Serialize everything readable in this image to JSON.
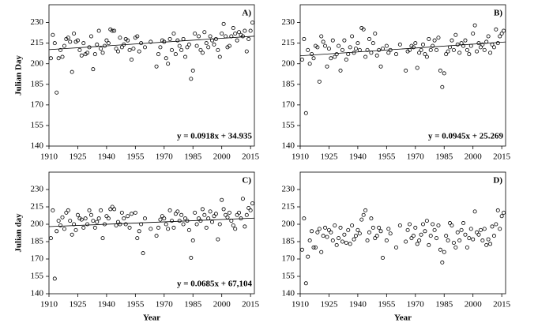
{
  "chart_data": [
    {
      "type": "scatter",
      "panel_label": "A)",
      "ylabel": "Julian Day",
      "color": "#000000",
      "xlim": [
        1910,
        2017
      ],
      "xticks": [
        1910,
        1925,
        1940,
        1955,
        1970,
        1985,
        2000,
        2015
      ],
      "ylim": [
        140,
        243
      ],
      "yticks": [
        140,
        155,
        170,
        185,
        200,
        215,
        230
      ],
      "trend": {
        "slope": 0.0918,
        "intercept": 34.935,
        "label": "y = 0.0918x + 34.935"
      },
      "x": [
        1911,
        1912,
        1913,
        1914,
        1915,
        1916,
        1917,
        1918,
        1919,
        1920,
        1921,
        1922,
        1923,
        1924,
        1925,
        1926,
        1927,
        1928,
        1929,
        1930,
        1931,
        1932,
        1933,
        1934,
        1935,
        1936,
        1937,
        1938,
        1939,
        1940,
        1941,
        1942,
        1943,
        1944,
        1945,
        1946,
        1947,
        1948,
        1949,
        1950,
        1951,
        1952,
        1953,
        1954,
        1955,
        1956,
        1957,
        1958,
        1960,
        1963,
        1966,
        1967,
        1968,
        1969,
        1970,
        1971,
        1972,
        1973,
        1974,
        1975,
        1976,
        1977,
        1978,
        1979,
        1980,
        1981,
        1982,
        1983,
        1984,
        1985,
        1986,
        1987,
        1988,
        1989,
        1990,
        1991,
        1992,
        1993,
        1994,
        1995,
        1996,
        1997,
        1998,
        1999,
        2000,
        2001,
        2002,
        2003,
        2004,
        2005,
        2006,
        2007,
        2008,
        2009,
        2010,
        2011,
        2012,
        2013,
        2014,
        2015,
        2016
      ],
      "values": [
        204,
        221,
        215,
        179,
        204,
        210,
        205,
        213,
        218,
        219,
        216,
        194,
        222,
        216,
        217,
        210,
        206,
        215,
        207,
        208,
        212,
        220,
        196,
        207,
        214,
        224,
        211,
        208,
        213,
        217,
        215,
        225,
        224,
        224,
        211,
        209,
        219,
        212,
        214,
        218,
        217,
        210,
        203,
        211,
        219,
        220,
        209,
        215,
        212,
        216,
        198,
        207,
        212,
        217,
        216,
        204,
        200,
        218,
        210,
        222,
        207,
        217,
        213,
        210,
        218,
        205,
        212,
        214,
        189,
        195,
        222,
        213,
        220,
        210,
        208,
        223,
        215,
        212,
        220,
        217,
        214,
        218,
        210,
        205,
        222,
        229,
        220,
        212,
        213,
        220,
        226,
        222,
        217,
        223,
        221,
        220,
        224,
        209,
        218,
        224,
        230
      ]
    },
    {
      "type": "scatter",
      "panel_label": "B)",
      "color": "#000000",
      "xlim": [
        1910,
        2017
      ],
      "xticks": [
        1910,
        1925,
        1940,
        1955,
        1970,
        1985,
        2000,
        2015
      ],
      "ylim": [
        140,
        243
      ],
      "yticks": [
        140,
        155,
        170,
        185,
        200,
        215,
        230
      ],
      "trend": {
        "slope": 0.0945,
        "intercept": 25.269,
        "label": "y = 0.0945x + 25.269"
      },
      "x": [
        1911,
        1912,
        1913,
        1914,
        1915,
        1916,
        1917,
        1918,
        1919,
        1920,
        1921,
        1922,
        1923,
        1924,
        1925,
        1926,
        1927,
        1928,
        1929,
        1930,
        1931,
        1932,
        1933,
        1934,
        1935,
        1936,
        1937,
        1938,
        1939,
        1940,
        1941,
        1942,
        1943,
        1944,
        1945,
        1946,
        1947,
        1948,
        1949,
        1950,
        1951,
        1952,
        1953,
        1955,
        1956,
        1957,
        1960,
        1962,
        1965,
        1966,
        1967,
        1968,
        1969,
        1970,
        1971,
        1972,
        1973,
        1974,
        1975,
        1976,
        1977,
        1978,
        1979,
        1980,
        1981,
        1982,
        1983,
        1984,
        1985,
        1986,
        1987,
        1988,
        1989,
        1990,
        1991,
        1992,
        1993,
        1994,
        1995,
        1996,
        1997,
        1998,
        1999,
        2000,
        2001,
        2002,
        2003,
        2004,
        2005,
        2006,
        2007,
        2008,
        2009,
        2010,
        2011,
        2012,
        2013,
        2014,
        2015,
        2016
      ],
      "values": [
        203,
        218,
        164,
        210,
        200,
        207,
        204,
        213,
        212,
        187,
        220,
        216,
        213,
        198,
        211,
        204,
        217,
        205,
        207,
        213,
        195,
        210,
        217,
        203,
        207,
        212,
        220,
        208,
        211,
        215,
        210,
        226,
        225,
        205,
        210,
        218,
        208,
        215,
        222,
        206,
        210,
        198,
        211,
        213,
        208,
        210,
        207,
        214,
        195,
        209,
        210,
        213,
        212,
        215,
        197,
        208,
        210,
        214,
        207,
        205,
        218,
        210,
        213,
        217,
        210,
        219,
        195,
        183,
        193,
        207,
        209,
        212,
        217,
        210,
        221,
        214,
        208,
        215,
        213,
        217,
        210,
        207,
        213,
        222,
        228,
        209,
        215,
        212,
        214,
        210,
        216,
        220,
        208,
        214,
        212,
        225,
        215,
        220,
        222,
        224
      ]
    },
    {
      "type": "scatter",
      "panel_label": "C)",
      "ylabel": "Julian day",
      "xlabel": "Year",
      "color": "#000000",
      "xlim": [
        1910,
        2017
      ],
      "xticks": [
        1910,
        1925,
        1940,
        1955,
        1970,
        1985,
        2000,
        2015
      ],
      "ylim": [
        140,
        245
      ],
      "yticks": [
        140,
        155,
        170,
        185,
        200,
        215,
        230
      ],
      "trend": {
        "slope": 0.0685,
        "intercept": 67.104,
        "label": "y = 0.0685x + 67,104"
      },
      "x": [
        1911,
        1912,
        1913,
        1914,
        1915,
        1916,
        1917,
        1918,
        1919,
        1920,
        1921,
        1922,
        1923,
        1924,
        1925,
        1926,
        1927,
        1928,
        1929,
        1930,
        1931,
        1932,
        1933,
        1934,
        1935,
        1936,
        1937,
        1938,
        1939,
        1940,
        1941,
        1942,
        1943,
        1944,
        1945,
        1946,
        1947,
        1948,
        1949,
        1950,
        1951,
        1952,
        1953,
        1955,
        1956,
        1957,
        1958,
        1959,
        1960,
        1963,
        1966,
        1967,
        1968,
        1969,
        1970,
        1971,
        1972,
        1973,
        1974,
        1975,
        1976,
        1977,
        1978,
        1979,
        1980,
        1981,
        1982,
        1983,
        1984,
        1985,
        1986,
        1987,
        1988,
        1989,
        1990,
        1991,
        1992,
        1993,
        1994,
        1995,
        1996,
        1997,
        1998,
        1999,
        2000,
        2001,
        2002,
        2003,
        2004,
        2005,
        2006,
        2007,
        2008,
        2009,
        2010,
        2011,
        2012,
        2013,
        2014,
        2015,
        2016
      ],
      "values": [
        188,
        212,
        153,
        194,
        203,
        199,
        206,
        196,
        210,
        212,
        203,
        191,
        200,
        195,
        208,
        205,
        204,
        197,
        205,
        200,
        212,
        208,
        203,
        197,
        202,
        205,
        212,
        188,
        200,
        207,
        205,
        213,
        215,
        213,
        199,
        202,
        200,
        210,
        205,
        200,
        207,
        197,
        209,
        210,
        188,
        194,
        200,
        175,
        205,
        196,
        190,
        197,
        204,
        207,
        205,
        200,
        196,
        212,
        203,
        197,
        209,
        211,
        203,
        208,
        200,
        205,
        203,
        195,
        171,
        186,
        210,
        200,
        205,
        203,
        213,
        208,
        197,
        205,
        211,
        202,
        207,
        209,
        187,
        200,
        221,
        213,
        208,
        206,
        210,
        203,
        199,
        196,
        208,
        210,
        205,
        222,
        198,
        208,
        214,
        212,
        218
      ]
    },
    {
      "type": "scatter",
      "panel_label": "D)",
      "xlabel": "Year",
      "color": "#000000",
      "xlim": [
        1910,
        2017
      ],
      "xticks": [
        1910,
        1925,
        1940,
        1955,
        1970,
        1985,
        2000,
        2015
      ],
      "ylim": [
        140,
        245
      ],
      "yticks": [
        140,
        155,
        170,
        185,
        200,
        215,
        230
      ],
      "x": [
        1911,
        1912,
        1913,
        1914,
        1915,
        1916,
        1917,
        1918,
        1919,
        1920,
        1921,
        1922,
        1923,
        1924,
        1925,
        1926,
        1927,
        1928,
        1929,
        1930,
        1931,
        1932,
        1933,
        1934,
        1935,
        1936,
        1937,
        1938,
        1939,
        1940,
        1941,
        1942,
        1943,
        1944,
        1945,
        1946,
        1947,
        1948,
        1949,
        1950,
        1951,
        1952,
        1953,
        1955,
        1956,
        1957,
        1960,
        1962,
        1965,
        1966,
        1967,
        1968,
        1969,
        1970,
        1971,
        1972,
        1973,
        1974,
        1975,
        1976,
        1977,
        1978,
        1979,
        1980,
        1981,
        1982,
        1983,
        1984,
        1985,
        1986,
        1987,
        1988,
        1989,
        1990,
        1991,
        1992,
        1993,
        1994,
        1995,
        1996,
        1997,
        1998,
        1999,
        2000,
        2001,
        2002,
        2003,
        2004,
        2005,
        2006,
        2007,
        2008,
        2009,
        2010,
        2011,
        2012,
        2013,
        2014,
        2015,
        2016
      ],
      "values": [
        178,
        205,
        149,
        172,
        186,
        194,
        180,
        180,
        193,
        196,
        176,
        190,
        197,
        189,
        195,
        193,
        186,
        199,
        182,
        188,
        197,
        185,
        191,
        184,
        195,
        183,
        199,
        187,
        190,
        195,
        192,
        204,
        208,
        212,
        186,
        193,
        205,
        197,
        188,
        190,
        197,
        194,
        171,
        186,
        196,
        192,
        180,
        199,
        185,
        195,
        200,
        188,
        190,
        197,
        183,
        186,
        191,
        200,
        194,
        203,
        182,
        190,
        200,
        195,
        188,
        199,
        178,
        167,
        176,
        190,
        186,
        201,
        199,
        184,
        180,
        193,
        186,
        195,
        201,
        191,
        180,
        188,
        196,
        187,
        211,
        193,
        191,
        195,
        186,
        196,
        182,
        187,
        183,
        198,
        190,
        200,
        212,
        196,
        207,
        210
      ]
    }
  ]
}
